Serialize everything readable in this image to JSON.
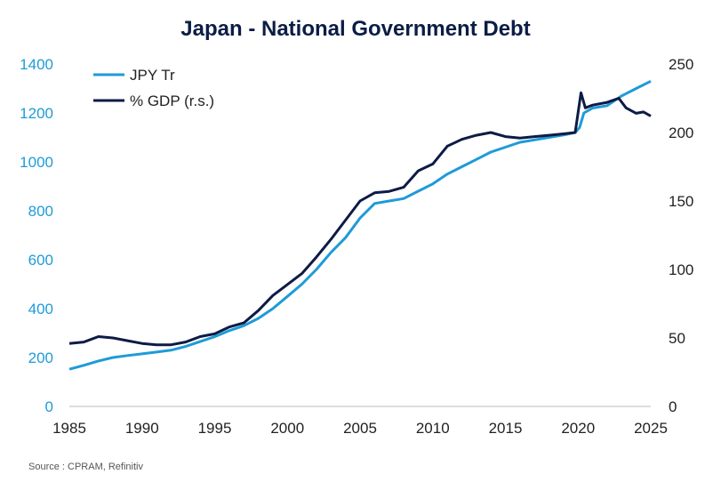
{
  "chart_data": {
    "type": "line",
    "title": "Japan - National Government Debt",
    "source": "Source : CPRAM, Refinitiv",
    "xlim": [
      1985,
      2025
    ],
    "x_ticks": [
      "1985",
      "1990",
      "1995",
      "2000",
      "2005",
      "2010",
      "2015",
      "2020",
      "2025"
    ],
    "y_left": {
      "lim": [
        0,
        1400
      ],
      "ticks": [
        "0",
        "200",
        "400",
        "600",
        "800",
        "1000",
        "1200",
        "1400"
      ]
    },
    "y_right": {
      "lim": [
        0,
        250
      ],
      "ticks": [
        "0",
        "50",
        "100",
        "150",
        "200",
        "250"
      ]
    },
    "grid": false,
    "legend_position": "top-left",
    "series": [
      {
        "name": "JPY Tr",
        "axis": "left",
        "color": "#1e9bd7",
        "x": [
          1985,
          1986,
          1987,
          1988,
          1989,
          1990,
          1991,
          1992,
          1993,
          1994,
          1995,
          1996,
          1997,
          1998,
          1999,
          2000,
          2001,
          2002,
          2003,
          2004,
          2005,
          2006,
          2007,
          2008,
          2009,
          2010,
          2011,
          2012,
          2013,
          2014,
          2015,
          2016,
          2017,
          2018,
          2019,
          2019.8,
          2020.1,
          2020.4,
          2021,
          2022,
          2023,
          2024,
          2025
        ],
        "y": [
          152,
          168,
          186,
          200,
          208,
          215,
          222,
          230,
          245,
          265,
          285,
          310,
          330,
          360,
          400,
          450,
          500,
          560,
          630,
          690,
          770,
          830,
          840,
          850,
          880,
          910,
          950,
          980,
          1010,
          1040,
          1060,
          1080,
          1090,
          1100,
          1110,
          1120,
          1140,
          1200,
          1220,
          1230,
          1270,
          1300,
          1330
        ]
      },
      {
        "name": "% GDP (r.s.)",
        "axis": "right",
        "color": "#0d1b45",
        "x": [
          1985,
          1986,
          1987,
          1988,
          1989,
          1990,
          1991,
          1992,
          1993,
          1994,
          1995,
          1996,
          1997,
          1998,
          1999,
          2000,
          2001,
          2002,
          2003,
          2004,
          2005,
          2006,
          2007,
          2008,
          2009,
          2010,
          2011,
          2012,
          2013,
          2014,
          2015,
          2016,
          2017,
          2018,
          2019,
          2019.8,
          2020.2,
          2020.5,
          2021,
          2022,
          2022.8,
          2023.3,
          2024,
          2024.5,
          2025
        ],
        "y": [
          46,
          47,
          51,
          50,
          48,
          46,
          45,
          45,
          47,
          51,
          53,
          58,
          61,
          70,
          81,
          89,
          97,
          109,
          122,
          136,
          150,
          156,
          157,
          160,
          172,
          177,
          190,
          195,
          198,
          200,
          197,
          196,
          197,
          198,
          199,
          200,
          229,
          218,
          220,
          222,
          225,
          218,
          214,
          215,
          212
        ]
      }
    ]
  }
}
